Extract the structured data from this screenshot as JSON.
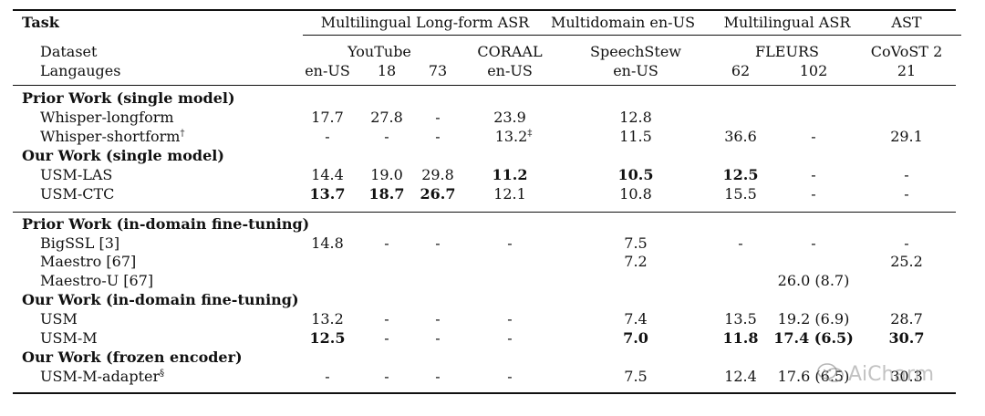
{
  "header": {
    "task": "Task",
    "groups": {
      "long_form": "Multilingual Long-form ASR",
      "multidomain": "Multidomain en-US",
      "multilingual": "Multilingual ASR",
      "ast": "AST"
    },
    "dataset_label": "Dataset",
    "languages_label": "Langauges",
    "datasets": {
      "youtube": "YouTube",
      "coraal": "CORAAL",
      "speechstew": "SpeechStew",
      "fleurs": "FLEURS",
      "covost": "CoVoST 2"
    },
    "languages": [
      "en-US",
      "18",
      "73",
      "en-US",
      "en-US",
      "62",
      "102",
      "21"
    ]
  },
  "sections": [
    {
      "title": "Prior Work (single model)"
    },
    {
      "title": "Our Work (single model)"
    },
    {
      "title": "Prior Work (in-domain fine-tuning)"
    },
    {
      "title": "Our Work (in-domain fine-tuning)"
    },
    {
      "title": "Our Work (frozen encoder)"
    }
  ],
  "rows": [
    {
      "label": "Whisper-longform",
      "cells": [
        "17.7",
        "27.8",
        "-",
        "23.9",
        "12.8",
        "",
        "",
        ""
      ]
    },
    {
      "label": "Whisper-shortform",
      "sup": "†",
      "cells": [
        "-",
        "-",
        "-",
        "13.2",
        "11.5",
        "36.6",
        "-",
        "29.1"
      ],
      "cell_sup": "‡"
    },
    {
      "label": "USM-LAS",
      "cells": [
        "14.4",
        "19.0",
        "29.8",
        "11.2",
        "10.5",
        "12.5",
        "-",
        "-"
      ]
    },
    {
      "label": "USM-CTC",
      "cells": [
        "13.7",
        "18.7",
        "26.7",
        "12.1",
        "10.8",
        "15.5",
        "-",
        "-"
      ]
    },
    {
      "label": "BigSSL [3]",
      "cells": [
        "14.8",
        "-",
        "-",
        "-",
        "7.5",
        "-",
        "-",
        "-"
      ]
    },
    {
      "label": "Maestro [67]",
      "cells": [
        "",
        "",
        "",
        "",
        "7.2",
        "",
        "",
        "25.2"
      ]
    },
    {
      "label": "Maestro-U [67]",
      "cells": [
        "",
        "",
        "",
        "",
        "",
        "",
        "26.0 (8.7)",
        ""
      ]
    },
    {
      "label": "USM",
      "cells": [
        "13.2",
        "-",
        "-",
        "-",
        "7.4",
        "13.5",
        "19.2 (6.9)",
        "28.7"
      ]
    },
    {
      "label": "USM-M",
      "cells": [
        "12.5",
        "-",
        "-",
        "-",
        "7.0",
        "11.8",
        "17.4 (6.5)",
        "30.7"
      ]
    },
    {
      "label": "USM-M-adapter",
      "sup": "§",
      "cells": [
        "-",
        "-",
        "-",
        "-",
        "7.5",
        "12.4",
        "17.6 (6.5)",
        "30.3"
      ]
    }
  ],
  "watermark": {
    "text": "AiCharm",
    "icon": "wechat-logo-icon"
  }
}
